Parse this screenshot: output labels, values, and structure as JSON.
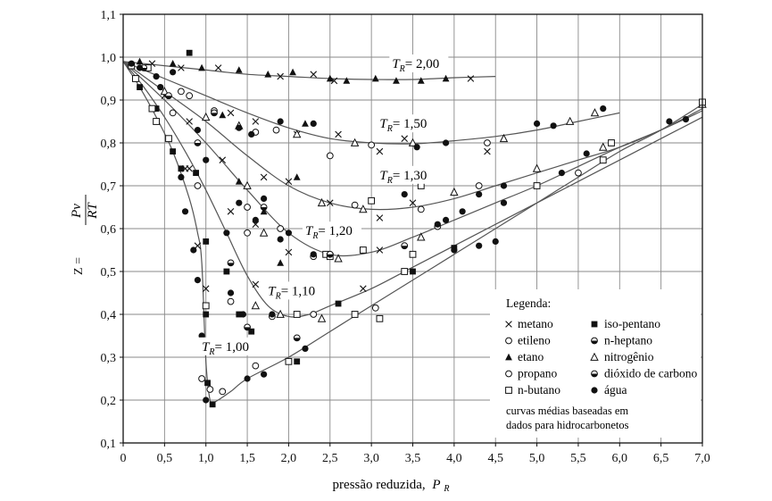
{
  "chart_data": {
    "type": "scatter",
    "xlabel": "pressão reduzida,",
    "xlabel_symbol": "P",
    "xlabel_sub": "R",
    "ylabel_prefix": "Z =",
    "ylabel_num": "Pv",
    "ylabel_den": "RT",
    "xlim": [
      0,
      7.0
    ],
    "ylim": [
      0.1,
      1.1
    ],
    "xticks": [
      "0",
      "0,5",
      "1,0",
      "1,5",
      "2,0",
      "2,5",
      "3,0",
      "3,5",
      "4,0",
      "4,5",
      "5,0",
      "5,5",
      "6,0",
      "6,5",
      "7,0"
    ],
    "yticks": [
      "0,1",
      "0,2",
      "0,3",
      "0,4",
      "0,5",
      "0,6",
      "0,7",
      "0,8",
      "0,9",
      "1,0",
      "1,1"
    ],
    "grid": true,
    "curves": [
      {
        "label_sym": "T",
        "label_sub": "R",
        "label_val": "= 2,00",
        "x": [
          0,
          0.5,
          1.0,
          1.5,
          2.0,
          2.5,
          3.0,
          3.5,
          4.0,
          4.5
        ],
        "y": [
          0.99,
          0.98,
          0.97,
          0.96,
          0.955,
          0.95,
          0.948,
          0.948,
          0.952,
          0.955
        ]
      },
      {
        "label_sym": "T",
        "label_sub": "R",
        "label_val": "= 1,50",
        "x": [
          0,
          0.5,
          1.0,
          1.5,
          2.0,
          2.5,
          3.0,
          3.5,
          4.0,
          4.5,
          5.0,
          5.5,
          6.0
        ],
        "y": [
          0.99,
          0.95,
          0.91,
          0.87,
          0.835,
          0.81,
          0.8,
          0.798,
          0.805,
          0.815,
          0.83,
          0.85,
          0.87
        ]
      },
      {
        "label_sym": "T",
        "label_sub": "R",
        "label_val": "= 1,30",
        "x": [
          0,
          0.5,
          1.0,
          1.5,
          2.0,
          2.5,
          3.0,
          3.5,
          4.0,
          4.5,
          5.0,
          5.5,
          6.0,
          6.5,
          7.0
        ],
        "y": [
          0.99,
          0.92,
          0.85,
          0.77,
          0.7,
          0.66,
          0.645,
          0.65,
          0.67,
          0.7,
          0.73,
          0.76,
          0.79,
          0.83,
          0.88
        ]
      },
      {
        "label_sym": "T",
        "label_sub": "R",
        "label_val": "= 1,20",
        "x": [
          0,
          0.5,
          1.0,
          1.5,
          2.0,
          2.5,
          3.0,
          3.5,
          4.0,
          4.5,
          5.0,
          5.5,
          6.0,
          6.5,
          7.0
        ],
        "y": [
          0.99,
          0.9,
          0.8,
          0.69,
          0.59,
          0.54,
          0.545,
          0.58,
          0.62,
          0.66,
          0.7,
          0.745,
          0.79,
          0.83,
          0.875
        ]
      },
      {
        "label_sym": "T",
        "label_sub": "R",
        "label_val": "= 1,10",
        "x": [
          0,
          0.25,
          0.5,
          0.75,
          1.0,
          1.25,
          1.5,
          1.75,
          2.0,
          2.25,
          2.5,
          3.0,
          3.5,
          4.0,
          4.5,
          5.0,
          5.5,
          6.0,
          6.5,
          7.0
        ],
        "y": [
          0.99,
          0.93,
          0.86,
          0.78,
          0.69,
          0.59,
          0.49,
          0.42,
          0.395,
          0.4,
          0.42,
          0.46,
          0.51,
          0.56,
          0.61,
          0.66,
          0.71,
          0.76,
          0.81,
          0.86
        ]
      },
      {
        "label_sym": "T",
        "label_sub": "R",
        "label_val": "= 1,00",
        "x": [
          0,
          0.2,
          0.4,
          0.6,
          0.8,
          0.9,
          0.95,
          1.0,
          1.05,
          1.1,
          1.3,
          1.5,
          2.0,
          2.5,
          3.0,
          3.5,
          4.0,
          4.5,
          5.0,
          5.5,
          6.0,
          6.5,
          7.0
        ],
        "y": [
          0.99,
          0.93,
          0.86,
          0.78,
          0.67,
          0.59,
          0.52,
          0.29,
          0.2,
          0.195,
          0.22,
          0.25,
          0.3,
          0.36,
          0.42,
          0.48,
          0.54,
          0.6,
          0.66,
          0.72,
          0.78,
          0.83,
          0.89
        ]
      }
    ],
    "label_positions": [
      {
        "x": 3.25,
        "y": 0.975
      },
      {
        "x": 3.1,
        "y": 0.835
      },
      {
        "x": 3.1,
        "y": 0.715
      },
      {
        "x": 2.2,
        "y": 0.585
      },
      {
        "x": 1.75,
        "y": 0.445
      },
      {
        "x": 0.95,
        "y": 0.315
      }
    ],
    "points": [
      {
        "m": "x",
        "pts": [
          [
            0.35,
            0.985
          ],
          [
            0.7,
            0.975
          ],
          [
            1.15,
            0.975
          ],
          [
            1.9,
            0.955
          ],
          [
            2.3,
            0.96
          ],
          [
            2.55,
            0.945
          ],
          [
            4.2,
            0.95
          ],
          [
            0.5,
            0.91
          ],
          [
            1.3,
            0.87
          ],
          [
            1.6,
            0.85
          ],
          [
            2.1,
            0.82
          ],
          [
            2.6,
            0.82
          ],
          [
            3.1,
            0.78
          ],
          [
            3.4,
            0.81
          ],
          [
            4.4,
            0.78
          ],
          [
            0.8,
            0.85
          ],
          [
            1.2,
            0.76
          ],
          [
            1.7,
            0.72
          ],
          [
            2.0,
            0.71
          ],
          [
            2.5,
            0.66
          ],
          [
            3.1,
            0.625
          ],
          [
            3.5,
            0.66
          ],
          [
            0.8,
            0.74
          ],
          [
            1.3,
            0.64
          ],
          [
            1.6,
            0.61
          ],
          [
            2.0,
            0.545
          ],
          [
            3.1,
            0.55
          ],
          [
            0.75,
            0.74
          ],
          [
            1.6,
            0.47
          ],
          [
            2.1,
            0.4
          ],
          [
            2.9,
            0.46
          ],
          [
            0.9,
            0.56
          ],
          [
            1.0,
            0.46
          ]
        ]
      },
      {
        "m": "sqf",
        "pts": [
          [
            0.8,
            1.01
          ],
          [
            0.2,
            0.93
          ],
          [
            0.4,
            0.88
          ],
          [
            0.6,
            0.78
          ],
          [
            0.7,
            0.74
          ],
          [
            0.88,
            0.73
          ],
          [
            1.0,
            0.57
          ],
          [
            1.0,
            0.4
          ],
          [
            0.98,
            0.33
          ],
          [
            1.02,
            0.24
          ],
          [
            1.08,
            0.19
          ],
          [
            1.25,
            0.5
          ],
          [
            1.4,
            0.4
          ],
          [
            1.55,
            0.36
          ],
          [
            2.1,
            0.29
          ],
          [
            2.6,
            0.425
          ],
          [
            3.5,
            0.5
          ],
          [
            4.0,
            0.555
          ]
        ]
      },
      {
        "m": "tri",
        "pts": [
          [
            0.2,
            0.99
          ],
          [
            0.6,
            0.985
          ],
          [
            0.95,
            0.975
          ],
          [
            1.4,
            0.97
          ],
          [
            1.75,
            0.96
          ],
          [
            2.05,
            0.965
          ],
          [
            2.5,
            0.95
          ],
          [
            2.7,
            0.945
          ],
          [
            3.05,
            0.95
          ],
          [
            3.3,
            0.945
          ],
          [
            3.6,
            0.945
          ],
          [
            3.9,
            0.95
          ],
          [
            1.2,
            0.865
          ],
          [
            2.2,
            0.845
          ],
          [
            1.4,
            0.71
          ],
          [
            2.1,
            0.72
          ],
          [
            1.9,
            0.52
          ],
          [
            1.7,
            0.64
          ]
        ]
      },
      {
        "m": "tri-o",
        "pts": [
          [
            0.5,
            0.92
          ],
          [
            1.0,
            0.86
          ],
          [
            1.4,
            0.84
          ],
          [
            2.1,
            0.82
          ],
          [
            2.8,
            0.8
          ],
          [
            3.5,
            0.8
          ],
          [
            4.6,
            0.81
          ],
          [
            5.4,
            0.85
          ],
          [
            5.7,
            0.87
          ],
          [
            1.5,
            0.7
          ],
          [
            2.4,
            0.66
          ],
          [
            2.9,
            0.645
          ],
          [
            4.0,
            0.685
          ],
          [
            5.0,
            0.74
          ],
          [
            5.8,
            0.79
          ],
          [
            7.0,
            0.89
          ],
          [
            1.7,
            0.59
          ],
          [
            2.6,
            0.53
          ],
          [
            3.6,
            0.58
          ],
          [
            1.6,
            0.42
          ],
          [
            1.9,
            0.4
          ],
          [
            2.4,
            0.39
          ]
        ]
      },
      {
        "m": "circ",
        "pts": [
          [
            0.7,
            0.92
          ],
          [
            1.1,
            0.875
          ],
          [
            1.6,
            0.825
          ],
          [
            1.85,
            0.83
          ],
          [
            2.5,
            0.77
          ],
          [
            3.0,
            0.795
          ],
          [
            4.4,
            0.8
          ],
          [
            0.9,
            0.7
          ],
          [
            1.5,
            0.65
          ],
          [
            1.9,
            0.6
          ],
          [
            2.8,
            0.655
          ],
          [
            3.6,
            0.645
          ],
          [
            4.3,
            0.7
          ],
          [
            1.5,
            0.59
          ],
          [
            2.3,
            0.535
          ],
          [
            3.8,
            0.605
          ],
          [
            5.5,
            0.73
          ],
          [
            1.3,
            0.43
          ],
          [
            1.8,
            0.395
          ],
          [
            2.3,
            0.4
          ],
          [
            3.05,
            0.415
          ],
          [
            0.95,
            0.25
          ],
          [
            1.05,
            0.225
          ],
          [
            1.2,
            0.22
          ],
          [
            1.6,
            0.28
          ],
          [
            0.8,
            0.91
          ],
          [
            0.6,
            0.87
          ]
        ]
      },
      {
        "m": "sq",
        "pts": [
          [
            0.1,
            0.98
          ],
          [
            0.15,
            0.95
          ],
          [
            0.35,
            0.88
          ],
          [
            0.4,
            0.85
          ],
          [
            0.55,
            0.81
          ],
          [
            1.0,
            0.42
          ],
          [
            2.0,
            0.29
          ],
          [
            2.1,
            0.4
          ],
          [
            2.8,
            0.4
          ],
          [
            3.1,
            0.39
          ],
          [
            3.4,
            0.5
          ],
          [
            3.5,
            0.54
          ],
          [
            2.45,
            0.54
          ],
          [
            2.9,
            0.55
          ],
          [
            3.0,
            0.665
          ],
          [
            3.6,
            0.7
          ],
          [
            5.0,
            0.7
          ],
          [
            5.8,
            0.76
          ],
          [
            5.9,
            0.8
          ],
          [
            7.0,
            0.895
          ],
          [
            2.5,
            0.535
          ],
          [
            0.3,
            0.975
          ]
        ]
      },
      {
        "m": "half",
        "pts": [
          [
            0.25,
            0.975
          ],
          [
            0.55,
            0.91
          ],
          [
            1.1,
            0.87
          ],
          [
            1.7,
            0.65
          ],
          [
            2.5,
            0.54
          ],
          [
            3.4,
            0.56
          ],
          [
            0.9,
            0.8
          ],
          [
            1.3,
            0.52
          ],
          [
            1.5,
            0.37
          ],
          [
            2.1,
            0.345
          ]
        ]
      },
      {
        "m": "dot",
        "pts": [
          [
            0.1,
            0.985
          ],
          [
            0.2,
            0.975
          ],
          [
            0.4,
            0.955
          ],
          [
            0.45,
            0.93
          ],
          [
            0.6,
            0.965
          ],
          [
            0.9,
            0.83
          ],
          [
            1.0,
            0.76
          ],
          [
            1.4,
            0.835
          ],
          [
            1.55,
            0.82
          ],
          [
            1.9,
            0.85
          ],
          [
            2.3,
            0.845
          ],
          [
            3.55,
            0.79
          ],
          [
            3.9,
            0.8
          ],
          [
            5.0,
            0.845
          ],
          [
            5.2,
            0.84
          ],
          [
            5.8,
            0.88
          ],
          [
            1.4,
            0.66
          ],
          [
            1.7,
            0.67
          ],
          [
            2.0,
            0.59
          ],
          [
            3.4,
            0.68
          ],
          [
            4.3,
            0.68
          ],
          [
            4.6,
            0.7
          ],
          [
            5.6,
            0.775
          ],
          [
            6.6,
            0.85
          ],
          [
            6.8,
            0.855
          ],
          [
            1.25,
            0.59
          ],
          [
            1.6,
            0.62
          ],
          [
            1.9,
            0.575
          ],
          [
            2.3,
            0.54
          ],
          [
            3.8,
            0.61
          ],
          [
            3.9,
            0.62
          ],
          [
            4.1,
            0.64
          ],
          [
            4.6,
            0.66
          ],
          [
            5.3,
            0.73
          ],
          [
            1.3,
            0.45
          ],
          [
            1.45,
            0.4
          ],
          [
            1.8,
            0.4
          ],
          [
            2.2,
            0.32
          ],
          [
            4.0,
            0.55
          ],
          [
            4.3,
            0.56
          ],
          [
            4.5,
            0.57
          ],
          [
            1.5,
            0.25
          ],
          [
            1.7,
            0.26
          ],
          [
            0.95,
            0.35
          ],
          [
            1.0,
            0.2
          ],
          [
            0.7,
            0.72
          ],
          [
            0.75,
            0.64
          ],
          [
            0.85,
            0.55
          ],
          [
            0.9,
            0.48
          ]
        ]
      }
    ]
  },
  "legend": {
    "title": "Legenda:",
    "col1": [
      {
        "marker": "x",
        "label": "metano"
      },
      {
        "marker": "circ",
        "label": "etileno"
      },
      {
        "marker": "tri",
        "label": "etano"
      },
      {
        "marker": "circ",
        "label": "propano"
      },
      {
        "marker": "sq",
        "label": "n-butano"
      }
    ],
    "col2": [
      {
        "marker": "sqf",
        "label": "iso-pentano"
      },
      {
        "marker": "half",
        "label": "n-heptano"
      },
      {
        "marker": "tri-o",
        "label": "nitrogênio"
      },
      {
        "marker": "half",
        "label": "dióxido de carbono"
      },
      {
        "marker": "dot",
        "label": "água"
      }
    ],
    "note_line1": "curvas médias baseadas em",
    "note_line2": "dados para hidrocarbonetos"
  },
  "colors": {
    "ink": "#111111",
    "grid": "#8a8a8a",
    "curve": "#555555"
  }
}
